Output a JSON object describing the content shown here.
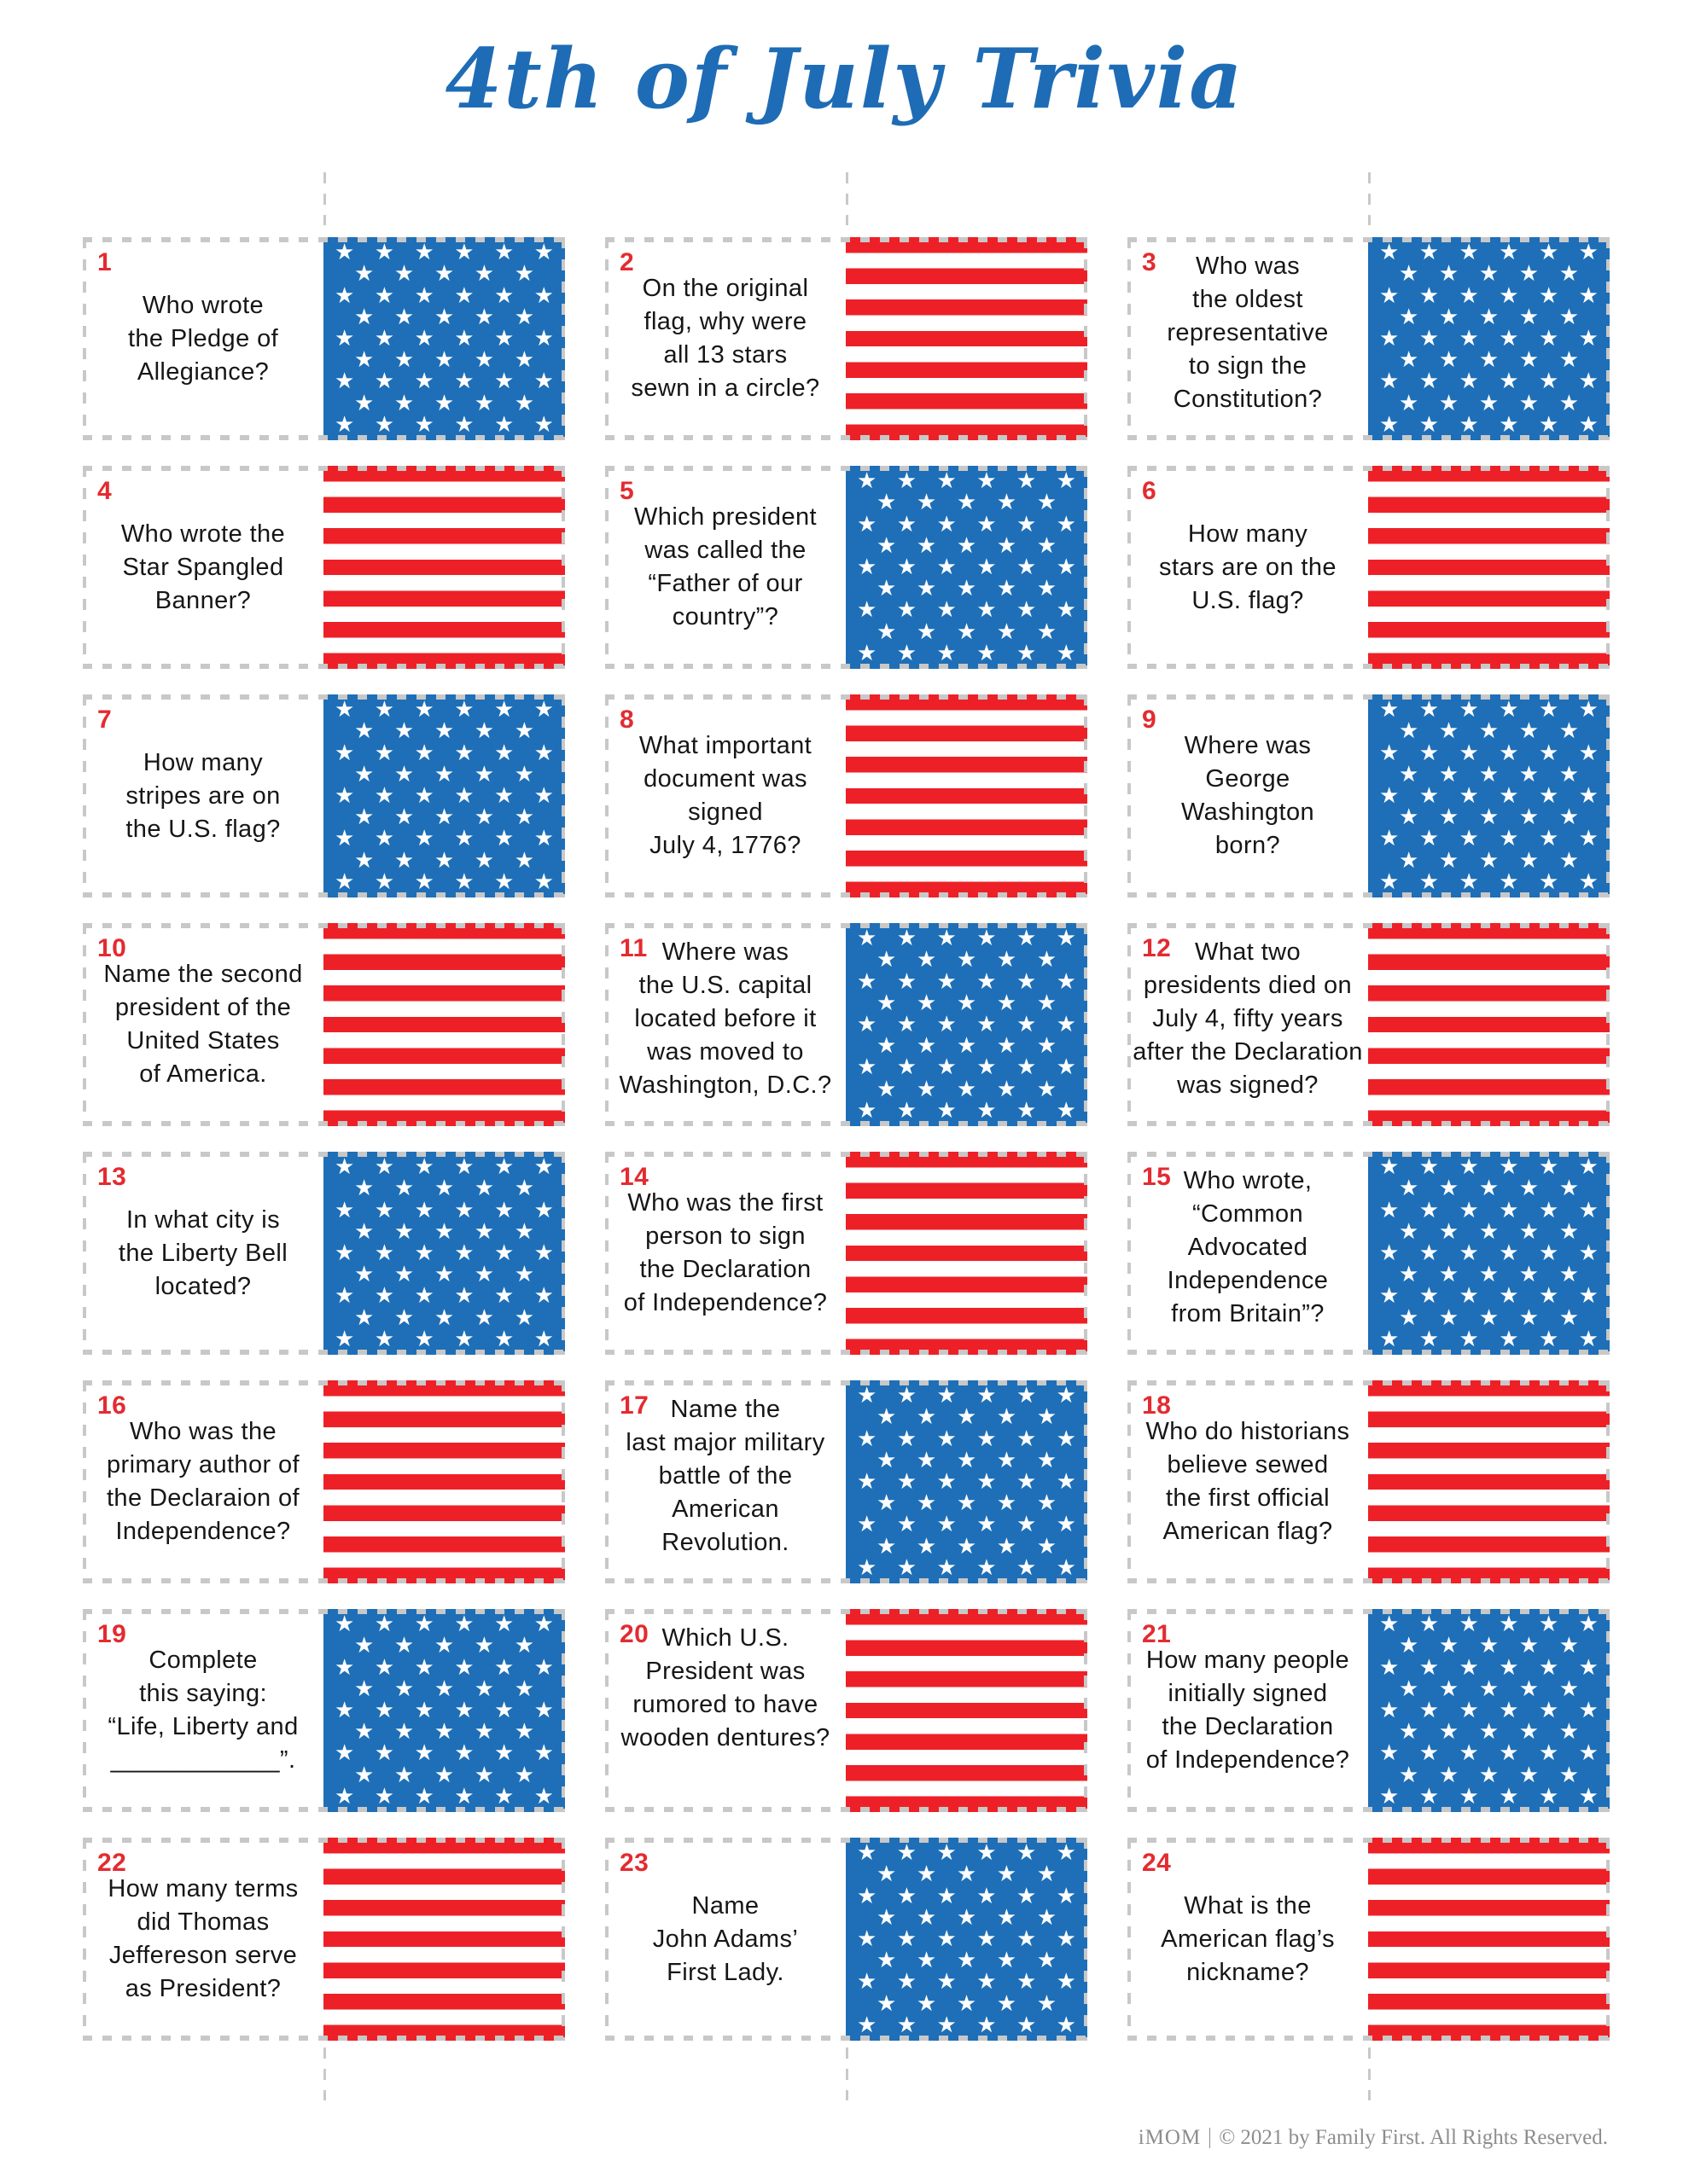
{
  "title": "4th of July Trivia",
  "footer": {
    "brand": "iMOM",
    "copyright": "© 2021 by Family First. All Rights Reserved."
  },
  "colors": {
    "flag_blue": "#1e6fb7",
    "flag_red": "#ee2027",
    "number_red": "#e32b31",
    "title_blue": "#1e6cb5",
    "dash_gray": "#c8c8c8",
    "footer_gray": "#8d8d8d"
  },
  "flag": {
    "star_rows": [
      6,
      5,
      6,
      5,
      6,
      5,
      6,
      5,
      6
    ],
    "stripes_total": 13,
    "stripes_red": 7
  },
  "questions": [
    {
      "num": "1",
      "flag": "stars",
      "inline": false,
      "lines": [
        "Who wrote",
        "the Pledge of",
        "Allegiance?"
      ]
    },
    {
      "num": "2",
      "flag": "stripes",
      "inline": false,
      "lines": [
        "On the original",
        "flag, why were",
        "all 13 stars",
        "sewn in a circle?"
      ]
    },
    {
      "num": "3",
      "flag": "stars",
      "inline": true,
      "lines": [
        "Who was",
        "the oldest",
        "representative",
        "to sign the",
        "Constitution?"
      ]
    },
    {
      "num": "4",
      "flag": "stripes",
      "inline": false,
      "lines": [
        "Who wrote the",
        "Star Spangled",
        "Banner?"
      ]
    },
    {
      "num": "5",
      "flag": "stars",
      "inline": false,
      "lines": [
        "Which president",
        "was called the",
        "“Father of our",
        "country”?"
      ]
    },
    {
      "num": "6",
      "flag": "stripes",
      "inline": false,
      "lines": [
        "How many",
        "stars are on the",
        "U.S. flag?"
      ]
    },
    {
      "num": "7",
      "flag": "stars",
      "inline": false,
      "lines": [
        "How many",
        "stripes are on",
        "the U.S. flag?"
      ]
    },
    {
      "num": "8",
      "flag": "stripes",
      "inline": false,
      "lines": [
        "What important",
        "document was",
        "signed",
        "July 4, 1776?"
      ]
    },
    {
      "num": "9",
      "flag": "stars",
      "inline": false,
      "lines": [
        "Where was",
        "George",
        "Washington",
        "born?"
      ]
    },
    {
      "num": "10",
      "flag": "stripes",
      "inline": false,
      "lines": [
        "Name the second",
        "president of the",
        "United States",
        "of America."
      ]
    },
    {
      "num": "11",
      "flag": "stars",
      "inline": true,
      "lines": [
        "Where was",
        "the U.S. capital",
        "located before it",
        "was moved to",
        "Washington, D.C.?"
      ]
    },
    {
      "num": "12",
      "flag": "stripes",
      "inline": true,
      "lines": [
        "What two",
        "presidents died on",
        "July 4, fifty years",
        "after the Declaration",
        "was signed?"
      ]
    },
    {
      "num": "13",
      "flag": "stars",
      "inline": false,
      "lines": [
        "In what city is",
        "the Liberty Bell",
        "located?"
      ]
    },
    {
      "num": "14",
      "flag": "stripes",
      "inline": false,
      "lines": [
        "Who was the first",
        "person to sign",
        "the Declaration",
        "of Independence?"
      ]
    },
    {
      "num": "15",
      "flag": "stars",
      "inline": true,
      "lines": [
        "Who wrote,",
        "“Common",
        "Advocated",
        "Independence",
        "from Britain”?"
      ]
    },
    {
      "num": "16",
      "flag": "stripes",
      "inline": false,
      "lines": [
        "Who was the",
        "primary author of",
        "the Declaraion of",
        "Independence?"
      ]
    },
    {
      "num": "17",
      "flag": "stars",
      "inline": true,
      "lines": [
        "Name the",
        "last major military",
        "battle of the",
        "American",
        "Revolution."
      ]
    },
    {
      "num": "18",
      "flag": "stripes",
      "inline": false,
      "lines": [
        "Who do historians",
        "believe sewed",
        "the first official",
        "American flag?"
      ]
    },
    {
      "num": "19",
      "flag": "stars",
      "inline": false,
      "lines": [
        "Complete",
        "this saying:",
        "“Life, Liberty and",
        "____________”."
      ]
    },
    {
      "num": "20",
      "flag": "stripes",
      "inline": true,
      "lines": [
        "Which U.S.",
        "President was",
        "rumored to have",
        "wooden dentures?"
      ]
    },
    {
      "num": "21",
      "flag": "stars",
      "inline": false,
      "lines": [
        "How many people",
        "initially signed",
        "the Declaration",
        "of Independence?"
      ]
    },
    {
      "num": "22",
      "flag": "stripes",
      "inline": false,
      "lines": [
        "How many terms",
        "did Thomas",
        "Jeffereson serve",
        "as President?"
      ]
    },
    {
      "num": "23",
      "flag": "stars",
      "inline": false,
      "lines": [
        "Name",
        "John Adams’",
        "First Lady."
      ]
    },
    {
      "num": "24",
      "flag": "stripes",
      "inline": false,
      "lines": [
        "What is the",
        "American flag’s",
        "nickname?"
      ]
    }
  ]
}
